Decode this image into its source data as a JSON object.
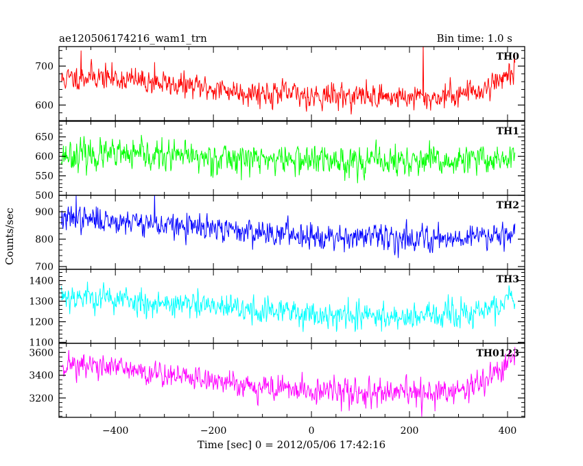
{
  "header": {
    "left_title": "ae120506174216_wam1_trn",
    "right_title": "Bin time: 1.0 s"
  },
  "axes": {
    "xlabel": "Time [sec] 0 = 2012/05/06 17:42:16",
    "ylabel": "Counts/sec"
  },
  "chart_data": {
    "type": "line",
    "shared_x": true,
    "x_range": [
      -510,
      415
    ],
    "xlim": [
      -515,
      435
    ],
    "x_ticks": [
      -400,
      -200,
      0,
      200,
      400
    ],
    "x_tick_labels": [
      "−400",
      "−200",
      "0",
      "200",
      "400"
    ],
    "bin_time_s": 1.0,
    "grid": false,
    "series": [
      {
        "name": "TH0",
        "color": "#ff0000",
        "ylim": [
          560,
          750
        ],
        "y_ticks": [
          600,
          700
        ],
        "y_tick_labels": [
          "600",
          "700"
        ],
        "trend_x": [
          -510,
          -450,
          -300,
          -150,
          0,
          150,
          250,
          350,
          415
        ],
        "trend_y": [
          665,
          675,
          655,
          635,
          625,
          622,
          618,
          640,
          690
        ],
        "noise": 18,
        "spikes": [
          [
            228,
            760
          ],
          [
            -470,
            740
          ],
          [
            -320,
            710
          ]
        ],
        "seed": 11
      },
      {
        "name": "TH1",
        "color": "#00ff00",
        "ylim": [
          500,
          690
        ],
        "y_ticks": [
          500,
          550,
          600,
          650
        ],
        "y_tick_labels": [
          "500",
          "550",
          "600",
          "650"
        ],
        "trend_x": [
          -510,
          -300,
          0,
          300,
          415
        ],
        "trend_y": [
          605,
          600,
          590,
          585,
          600
        ],
        "noise": 22,
        "spikes": [],
        "seed": 23
      },
      {
        "name": "TH2",
        "color": "#0000ff",
        "ylim": [
          690,
          960
        ],
        "y_ticks": [
          700,
          800,
          900
        ],
        "y_tick_labels": [
          "700",
          "800",
          "900"
        ],
        "trend_x": [
          -510,
          -350,
          -300,
          -150,
          0,
          150,
          300,
          415
        ],
        "trend_y": [
          875,
          865,
          850,
          830,
          815,
          805,
          805,
          830
        ],
        "noise": 26,
        "spikes": [
          [
            -320,
            965
          ],
          [
            -480,
            960
          ]
        ],
        "seed": 37
      },
      {
        "name": "TH3",
        "color": "#00ffff",
        "ylim": [
          1095,
          1455
        ],
        "y_ticks": [
          1100,
          1200,
          1300,
          1400
        ],
        "y_tick_labels": [
          "1100",
          "1200",
          "1300",
          "1400"
        ],
        "trend_x": [
          -510,
          -300,
          -150,
          0,
          150,
          300,
          380,
          415
        ],
        "trend_y": [
          1330,
          1290,
          1260,
          1240,
          1225,
          1230,
          1270,
          1330
        ],
        "noise": 38,
        "spikes": [],
        "seed": 53
      },
      {
        "name": "TH0123",
        "color": "#ff00ff",
        "ylim": [
          3030,
          3680
        ],
        "y_ticks": [
          3200,
          3400,
          3600
        ],
        "y_tick_labels": [
          "3200",
          "3400",
          "3600"
        ],
        "trend_x": [
          -510,
          -400,
          -250,
          -100,
          0,
          150,
          250,
          330,
          380,
          415
        ],
        "trend_y": [
          3500,
          3460,
          3380,
          3300,
          3260,
          3240,
          3230,
          3290,
          3430,
          3560
        ],
        "noise": 65,
        "spikes": [],
        "seed": 71
      }
    ]
  }
}
